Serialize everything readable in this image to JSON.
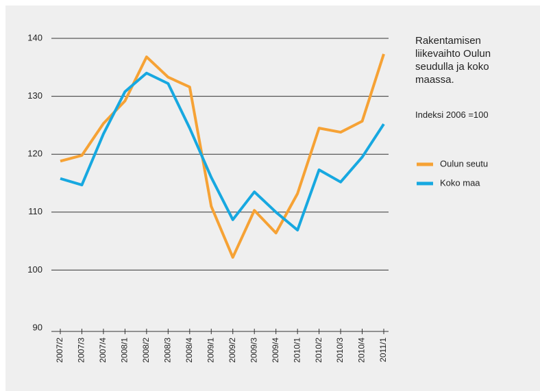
{
  "chart_data": {
    "type": "line",
    "title": "Rakentamisen liikevaihto Oulun seudulla ja koko maassa.",
    "subtitle": "Indeksi 2006 =100",
    "categories": [
      "2007/2",
      "2007/3",
      "2007/4",
      "2008/1",
      "2008/2",
      "2008/3",
      "2008/4",
      "2009/1",
      "2009/2",
      "2009/3",
      "2009/4",
      "2010/1",
      "2010/2",
      "2010/3",
      "2010/4",
      "2011/1"
    ],
    "series": [
      {
        "name": "Oulun seutu",
        "color": "#f6a235",
        "values": [
          118.8,
          119.8,
          125.3,
          129.2,
          136.8,
          133.3,
          131.6,
          111.0,
          102.2,
          110.3,
          106.4,
          113.2,
          124.5,
          123.8,
          125.7,
          137.3
        ]
      },
      {
        "name": "Koko maa",
        "color": "#17a8e0",
        "values": [
          115.8,
          114.7,
          123.5,
          130.8,
          134.0,
          132.2,
          124.5,
          116.0,
          108.7,
          113.5,
          110.0,
          106.9,
          117.3,
          115.2,
          119.5,
          125.2
        ]
      }
    ],
    "ylim": [
      90,
      140
    ],
    "yticks": [
      90,
      100,
      110,
      120,
      130,
      140
    ],
    "grid": true
  }
}
